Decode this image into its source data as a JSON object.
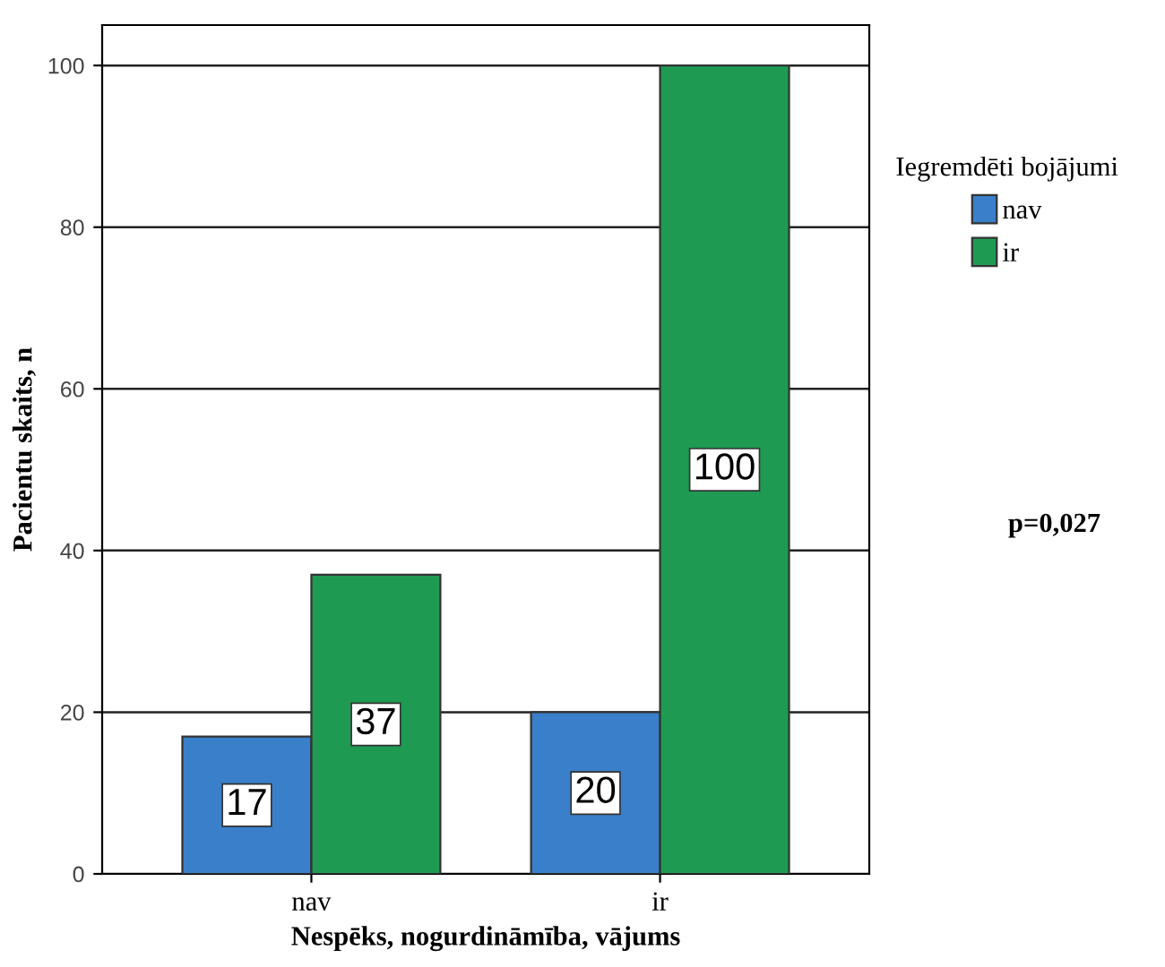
{
  "chart_data": {
    "type": "bar",
    "xlabel": "Nespēks, nogurdināmība, vājums",
    "ylabel": "Pacientu skaits, n",
    "legend_title": "Iegremdēti bojājumi",
    "categories": [
      "nav",
      "ir"
    ],
    "series": [
      {
        "name": "nav",
        "color": "#3a7fc9",
        "values": [
          17,
          20
        ]
      },
      {
        "name": "ir",
        "color": "#1f9a53",
        "values": [
          37,
          100
        ]
      }
    ],
    "ylim": [
      0,
      105
    ],
    "yticks": [
      0,
      20,
      40,
      60,
      80,
      100
    ],
    "grid": "y",
    "legend": "right",
    "data_labels": true,
    "annotations": [
      "p=0,027"
    ]
  }
}
